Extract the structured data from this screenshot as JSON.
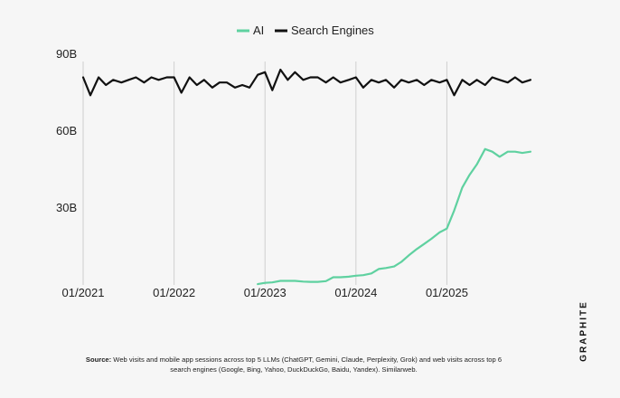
{
  "chart_data": {
    "type": "line",
    "legend": {
      "position": "top-center",
      "entries": [
        "AI",
        "Search Engines"
      ]
    },
    "y_ticks": [
      {
        "value": 90,
        "label": "90B"
      },
      {
        "value": 60,
        "label": "60B"
      },
      {
        "value": 30,
        "label": "30B"
      }
    ],
    "x_ticks": [
      {
        "value": 2021.0,
        "label": "01/2021"
      },
      {
        "value": 2022.0,
        "label": "01/2022"
      },
      {
        "value": 2023.0,
        "label": "01/2023"
      },
      {
        "value": 2024.0,
        "label": "01/2024"
      },
      {
        "value": 2025.0,
        "label": "01/2025"
      }
    ],
    "ylim": [
      0,
      90
    ],
    "xlim": [
      2021.0,
      2025.92
    ],
    "grid": "vertical lines at year ticks",
    "series": [
      {
        "name": "Search Engines",
        "color": "#111111",
        "x": [
          2021.0,
          2021.08,
          2021.17,
          2021.25,
          2021.33,
          2021.42,
          2021.5,
          2021.58,
          2021.67,
          2021.75,
          2021.83,
          2021.92,
          2022.0,
          2022.08,
          2022.17,
          2022.25,
          2022.33,
          2022.42,
          2022.5,
          2022.58,
          2022.67,
          2022.75,
          2022.83,
          2022.92,
          2023.0,
          2023.08,
          2023.17,
          2023.25,
          2023.33,
          2023.42,
          2023.5,
          2023.58,
          2023.67,
          2023.75,
          2023.83,
          2023.92,
          2024.0,
          2024.08,
          2024.17,
          2024.25,
          2024.33,
          2024.42,
          2024.5,
          2024.58,
          2024.67,
          2024.75,
          2024.83,
          2024.92,
          2025.0,
          2025.08,
          2025.17,
          2025.25,
          2025.33,
          2025.42,
          2025.5,
          2025.58,
          2025.67,
          2025.75,
          2025.83,
          2025.92
        ],
        "values": [
          81,
          74,
          81,
          78,
          80,
          79,
          80,
          81,
          79,
          81,
          80,
          81,
          81,
          75,
          81,
          78,
          80,
          77,
          79,
          79,
          77,
          78,
          77,
          82,
          83,
          76,
          84,
          80,
          83,
          80,
          81,
          81,
          79,
          81,
          79,
          80,
          81,
          77,
          80,
          79,
          80,
          77,
          80,
          79,
          80,
          78,
          80,
          79,
          80,
          74,
          80,
          78,
          80,
          78,
          81,
          80,
          79,
          81,
          79,
          80
        ]
      },
      {
        "name": "AI",
        "color": "#5fd1a0",
        "x": [
          2022.92,
          2023.0,
          2023.08,
          2023.17,
          2023.25,
          2023.33,
          2023.42,
          2023.5,
          2023.58,
          2023.67,
          2023.75,
          2023.83,
          2023.92,
          2024.0,
          2024.08,
          2024.17,
          2024.25,
          2024.33,
          2024.42,
          2024.5,
          2024.58,
          2024.67,
          2024.75,
          2024.83,
          2024.92,
          2025.0,
          2025.08,
          2025.17,
          2025.25,
          2025.33,
          2025.42,
          2025.5,
          2025.58,
          2025.67,
          2025.75,
          2025.83,
          2025.92
        ],
        "values": [
          0.3,
          0.8,
          1.0,
          1.6,
          1.6,
          1.6,
          1.3,
          1.2,
          1.2,
          1.5,
          3.0,
          3.0,
          3.2,
          3.6,
          3.8,
          4.5,
          6.2,
          6.6,
          7.2,
          9.0,
          11.5,
          14.0,
          16.0,
          18.0,
          20.5,
          22.0,
          29.0,
          38.0,
          43.0,
          47.0,
          53.0,
          52.0,
          50.0,
          52.0,
          52.0,
          51.5,
          52.0
        ]
      }
    ]
  },
  "source": {
    "label": "Source:",
    "text": "Web visits and mobile app sessions across top 5 LLMs (ChatGPT, Gemini, Claude, Perplexity, Grok) and web visits across top 6 search engines (Google, Bing, Yahoo, DuckDuckGo, Baidu, Yandex). Similarweb."
  },
  "brand": {
    "name": "GRAPHITE"
  }
}
